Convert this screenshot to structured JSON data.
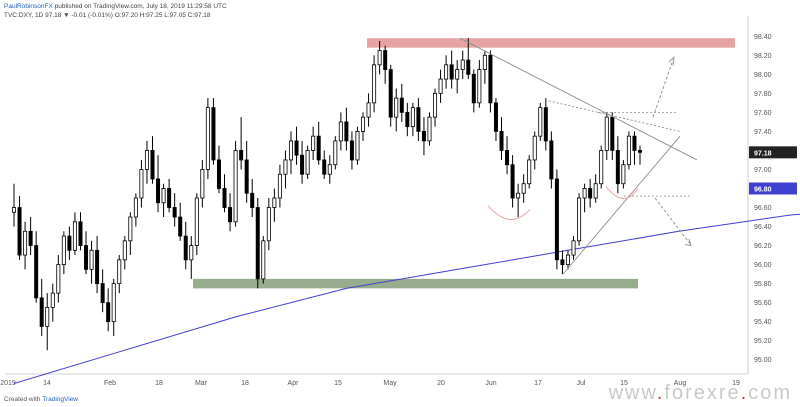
{
  "header": {
    "author": "PaulRobinsonFX",
    "published": "published on TradingView.com, July 18, 2019 11:29:58 UTC",
    "symbol": "TVC:DXY, 1D",
    "values": "97.18 ▼ -0.01 (-0.01%) O:97.20 H:97.25 L:97.05 C:97.18"
  },
  "footer": {
    "created_with": "Created with",
    "brand": "TradingView"
  },
  "watermark": {
    "pre": "www",
    "name": "forexre",
    "post": "com"
  },
  "colors": {
    "up": "#ffffff",
    "down": "#000000",
    "ma": "#3f3fd0",
    "resistance": "#e6a3a3",
    "support": "#97ad8d",
    "trend": "#8c8c8c",
    "highlight_ellipse": "#f0a0a0"
  },
  "chart_data": {
    "type": "candlestick",
    "instrument": "TVC:DXY",
    "interval": "1D",
    "title": "",
    "xlabel": "",
    "ylabel": "",
    "ylim": [
      94.85,
      98.55
    ],
    "x_ticks": [
      "2019",
      "14",
      "Feb",
      "18",
      "Mar",
      "18",
      "Apr",
      "15",
      "May",
      "20",
      "Jun",
      "17",
      "Jul",
      "15",
      "Aug",
      "19"
    ],
    "y_ticks": [
      95.0,
      95.2,
      95.4,
      95.6,
      95.8,
      96.0,
      96.2,
      96.4,
      96.6,
      96.8,
      97.0,
      97.2,
      97.4,
      97.6,
      97.8,
      98.0,
      98.2,
      98.4
    ],
    "last_price_label": "97.18",
    "ma_price_label": "96.80",
    "bars_ohlc": [
      [
        96.55,
        96.85,
        96.4,
        96.6
      ],
      [
        96.6,
        96.72,
        96.05,
        96.1
      ],
      [
        96.1,
        96.45,
        95.95,
        96.35
      ],
      [
        96.35,
        96.5,
        96.1,
        96.2
      ],
      [
        96.2,
        96.35,
        95.6,
        95.65
      ],
      [
        95.65,
        95.85,
        95.25,
        95.35
      ],
      [
        95.35,
        95.7,
        95.1,
        95.55
      ],
      [
        95.55,
        95.8,
        95.4,
        95.7
      ],
      [
        95.7,
        96.1,
        95.6,
        96.0
      ],
      [
        96.0,
        96.35,
        95.9,
        96.3
      ],
      [
        96.3,
        96.4,
        96.05,
        96.15
      ],
      [
        96.15,
        96.55,
        96.1,
        96.45
      ],
      [
        96.45,
        96.55,
        96.15,
        96.2
      ],
      [
        96.2,
        96.35,
        95.9,
        95.95
      ],
      [
        95.95,
        96.25,
        95.8,
        96.15
      ],
      [
        96.15,
        96.3,
        95.7,
        95.8
      ],
      [
        95.8,
        95.95,
        95.5,
        95.6
      ],
      [
        95.6,
        95.75,
        95.3,
        95.4
      ],
      [
        95.4,
        95.85,
        95.25,
        95.8
      ],
      [
        95.8,
        96.1,
        95.7,
        96.05
      ],
      [
        96.05,
        96.3,
        95.95,
        96.25
      ],
      [
        96.25,
        96.55,
        96.1,
        96.5
      ],
      [
        96.5,
        96.75,
        96.4,
        96.7
      ],
      [
        96.7,
        97.1,
        96.6,
        97.0
      ],
      [
        97.0,
        97.3,
        96.85,
        97.2
      ],
      [
        97.2,
        97.35,
        96.85,
        96.9
      ],
      [
        96.9,
        97.15,
        96.55,
        96.65
      ],
      [
        96.65,
        96.85,
        96.5,
        96.8
      ],
      [
        96.8,
        96.9,
        96.55,
        96.6
      ],
      [
        96.6,
        96.75,
        96.4,
        96.5
      ],
      [
        96.5,
        96.65,
        96.25,
        96.3
      ],
      [
        96.3,
        96.45,
        95.95,
        96.05
      ],
      [
        96.05,
        96.3,
        95.85,
        96.2
      ],
      [
        96.2,
        96.75,
        96.1,
        96.7
      ],
      [
        96.7,
        97.1,
        96.6,
        97.0
      ],
      [
        97.0,
        97.75,
        96.9,
        97.65
      ],
      [
        97.65,
        97.75,
        97.05,
        97.1
      ],
      [
        97.1,
        97.25,
        96.75,
        96.8
      ],
      [
        96.8,
        96.95,
        96.55,
        96.6
      ],
      [
        96.6,
        96.75,
        96.35,
        96.45
      ],
      [
        96.45,
        97.3,
        96.4,
        97.2
      ],
      [
        97.2,
        97.55,
        97.0,
        97.1
      ],
      [
        97.1,
        97.3,
        96.65,
        96.75
      ],
      [
        96.75,
        96.9,
        96.5,
        96.6
      ],
      [
        96.6,
        96.7,
        95.75,
        95.85
      ],
      [
        95.85,
        96.3,
        95.8,
        96.25
      ],
      [
        96.25,
        96.7,
        96.15,
        96.6
      ],
      [
        96.6,
        96.8,
        96.45,
        96.7
      ],
      [
        96.7,
        97.05,
        96.6,
        96.95
      ],
      [
        96.95,
        97.2,
        96.8,
        97.1
      ],
      [
        97.1,
        97.4,
        96.95,
        97.3
      ],
      [
        97.3,
        97.45,
        97.05,
        97.15
      ],
      [
        97.15,
        97.3,
        96.85,
        96.95
      ],
      [
        96.95,
        97.25,
        96.9,
        97.2
      ],
      [
        97.2,
        97.45,
        97.1,
        97.35
      ],
      [
        97.35,
        97.5,
        97.05,
        97.1
      ],
      [
        97.1,
        97.2,
        96.9,
        96.95
      ],
      [
        96.95,
        97.15,
        96.85,
        97.05
      ],
      [
        97.05,
        97.35,
        97.0,
        97.3
      ],
      [
        97.3,
        97.6,
        97.2,
        97.5
      ],
      [
        97.5,
        97.65,
        97.2,
        97.3
      ],
      [
        97.3,
        97.4,
        97.0,
        97.1
      ],
      [
        97.1,
        97.45,
        97.05,
        97.4
      ],
      [
        97.4,
        97.6,
        97.3,
        97.55
      ],
      [
        97.55,
        97.8,
        97.45,
        97.7
      ],
      [
        97.7,
        98.2,
        97.6,
        98.1
      ],
      [
        98.1,
        98.35,
        98.0,
        98.25
      ],
      [
        98.25,
        98.3,
        97.9,
        98.05
      ],
      [
        98.05,
        98.1,
        97.45,
        97.55
      ],
      [
        97.55,
        97.85,
        97.4,
        97.75
      ],
      [
        97.75,
        97.9,
        97.5,
        97.6
      ],
      [
        97.6,
        97.7,
        97.35,
        97.45
      ],
      [
        97.45,
        97.7,
        97.35,
        97.65
      ],
      [
        97.65,
        97.75,
        97.3,
        97.4
      ],
      [
        97.4,
        97.55,
        97.15,
        97.3
      ],
      [
        97.3,
        97.6,
        97.25,
        97.55
      ],
      [
        97.55,
        97.85,
        97.45,
        97.8
      ],
      [
        97.8,
        98.05,
        97.7,
        97.95
      ],
      [
        97.95,
        98.2,
        97.85,
        98.1
      ],
      [
        98.1,
        98.25,
        97.85,
        97.95
      ],
      [
        97.95,
        98.15,
        97.8,
        98.05
      ],
      [
        98.05,
        98.25,
        97.95,
        98.15
      ],
      [
        98.15,
        98.38,
        97.95,
        98.0
      ],
      [
        98.0,
        98.05,
        97.6,
        97.7
      ],
      [
        97.7,
        98.15,
        97.65,
        98.05
      ],
      [
        98.05,
        98.25,
        97.9,
        98.2
      ],
      [
        98.2,
        98.25,
        97.6,
        97.7
      ],
      [
        97.7,
        97.75,
        97.3,
        97.4
      ],
      [
        97.4,
        97.55,
        97.1,
        97.2
      ],
      [
        97.2,
        97.35,
        96.95,
        97.05
      ],
      [
        97.05,
        97.15,
        96.6,
        96.7
      ],
      [
        96.7,
        96.85,
        96.5,
        96.75
      ],
      [
        96.75,
        96.95,
        96.65,
        96.85
      ],
      [
        96.85,
        97.15,
        96.8,
        97.1
      ],
      [
        97.1,
        97.4,
        97.0,
        97.35
      ],
      [
        97.35,
        97.7,
        97.3,
        97.65
      ],
      [
        97.65,
        97.75,
        97.2,
        97.3
      ],
      [
        97.3,
        97.4,
        96.8,
        96.9
      ],
      [
        96.9,
        97.0,
        95.95,
        96.05
      ],
      [
        96.05,
        96.15,
        95.9,
        96.0
      ],
      [
        96.0,
        96.15,
        95.95,
        96.1
      ],
      [
        96.1,
        96.3,
        96.05,
        96.25
      ],
      [
        96.25,
        96.75,
        96.2,
        96.7
      ],
      [
        96.7,
        96.85,
        96.55,
        96.8
      ],
      [
        96.8,
        96.9,
        96.6,
        96.7
      ],
      [
        96.7,
        96.95,
        96.65,
        96.85
      ],
      [
        96.85,
        97.25,
        96.8,
        97.2
      ],
      [
        97.2,
        97.6,
        97.1,
        97.55
      ],
      [
        97.55,
        97.6,
        97.1,
        97.2
      ],
      [
        97.2,
        97.35,
        96.75,
        96.85
      ],
      [
        96.85,
        97.1,
        96.8,
        97.05
      ],
      [
        97.05,
        97.4,
        97.0,
        97.35
      ],
      [
        97.35,
        97.4,
        97.05,
        97.2
      ],
      [
        97.2,
        97.25,
        97.05,
        97.18
      ]
    ],
    "moving_average": [
      [
        0,
        94.75
      ],
      [
        20,
        95.1
      ],
      [
        40,
        95.45
      ],
      [
        60,
        95.75
      ],
      [
        80,
        95.95
      ],
      [
        100,
        96.15
      ],
      [
        120,
        96.35
      ],
      [
        140,
        96.52
      ],
      [
        160,
        96.62
      ],
      [
        175,
        96.72
      ],
      [
        181,
        96.8
      ]
    ],
    "zones": {
      "resistance": [
        98.28,
        98.38
      ],
      "support": [
        95.75,
        95.85
      ]
    },
    "trendlines": [
      {
        "from": [
          98.38
        ],
        "to": [
          97.1
        ],
        "style": "solid"
      },
      {
        "from": [
          97.73
        ],
        "to": [
          97.4
        ],
        "style": "dashed"
      },
      {
        "from": [
          95.9
        ],
        "to": [
          97.35
        ],
        "style": "solid"
      }
    ],
    "projected_moves": [
      "up",
      "down"
    ]
  }
}
